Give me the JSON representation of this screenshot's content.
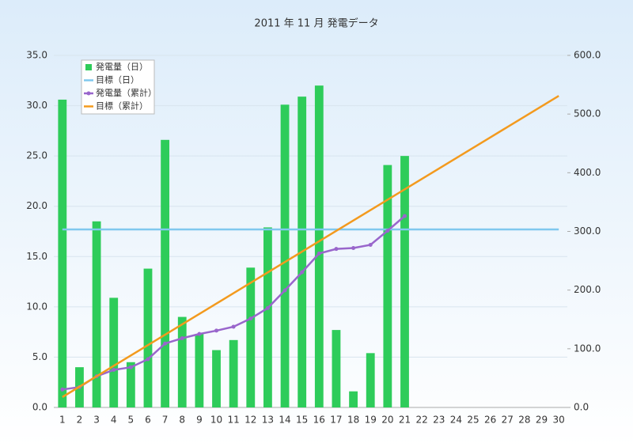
{
  "chart_data": {
    "type": "bar",
    "title": "2011 年 11 月  発電データ",
    "categories": [
      "1",
      "2",
      "3",
      "4",
      "5",
      "6",
      "7",
      "8",
      "9",
      "10",
      "11",
      "12",
      "13",
      "14",
      "15",
      "16",
      "17",
      "18",
      "19",
      "20",
      "21",
      "22",
      "23",
      "24",
      "25",
      "26",
      "27",
      "28",
      "29",
      "30"
    ],
    "series": [
      {
        "name": "発電量（日）",
        "type": "bar",
        "color": "#2ecc5a",
        "values": [
          30.6,
          4.0,
          18.5,
          10.9,
          4.5,
          13.8,
          26.6,
          9.0,
          7.3,
          5.7,
          6.7,
          13.9,
          17.9,
          30.1,
          30.9,
          32.0,
          7.7,
          1.6,
          5.4,
          24.1,
          25.0,
          null,
          null,
          null,
          null,
          null,
          null,
          null,
          null,
          null
        ]
      },
      {
        "name": "目標（日）",
        "type": "line",
        "color": "#80c8ee",
        "values": [
          17.7,
          17.7,
          17.7,
          17.7,
          17.7,
          17.7,
          17.7,
          17.7,
          17.7,
          17.7,
          17.7,
          17.7,
          17.7,
          17.7,
          17.7,
          17.7,
          17.7,
          17.7,
          17.7,
          17.7,
          17.7,
          17.7,
          17.7,
          17.7,
          17.7,
          17.7,
          17.7,
          17.7,
          17.7,
          17.7
        ]
      },
      {
        "name": "発電量（累計）",
        "type": "line",
        "axis": "y2",
        "marker": true,
        "color": "#9966cc",
        "values": [
          30.6,
          34.6,
          53.1,
          64.0,
          68.5,
          82.3,
          108.9,
          117.9,
          125.2,
          130.9,
          137.6,
          151.5,
          169.4,
          199.5,
          230.4,
          262.4,
          270.1,
          271.7,
          277.1,
          301.2,
          326.2,
          null,
          null,
          null,
          null,
          null,
          null,
          null,
          null,
          null
        ]
      },
      {
        "name": "目標（累計）",
        "type": "line",
        "axis": "y2",
        "color": "#f39a1e",
        "values": [
          17.7,
          35.4,
          53.1,
          70.8,
          88.5,
          106.2,
          123.9,
          141.6,
          159.3,
          177.0,
          194.7,
          212.4,
          230.1,
          247.8,
          265.5,
          283.2,
          300.9,
          318.6,
          336.3,
          354.0,
          371.7,
          389.4,
          407.1,
          424.8,
          442.5,
          460.2,
          477.9,
          495.6,
          513.3,
          531.0
        ]
      }
    ],
    "ylim": [
      0,
      35
    ],
    "yticks": [
      {
        "value": 0,
        "label": "0.0"
      },
      {
        "value": 5,
        "label": "5.0"
      },
      {
        "value": 10,
        "label": "10.0"
      },
      {
        "value": 15,
        "label": "15.0"
      },
      {
        "value": 20,
        "label": "20.0"
      },
      {
        "value": 25,
        "label": "25.0"
      },
      {
        "value": 30,
        "label": "30.0"
      },
      {
        "value": 35,
        "label": "35.0"
      }
    ],
    "y2lim": [
      0,
      600
    ],
    "y2ticks": [
      {
        "value": 0,
        "label": "0.0"
      },
      {
        "value": 100,
        "label": "100.0"
      },
      {
        "value": 200,
        "label": "200.0"
      },
      {
        "value": 300,
        "label": "300.0"
      },
      {
        "value": 400,
        "label": "400.0"
      },
      {
        "value": 500,
        "label": "500.0"
      },
      {
        "value": 600,
        "label": "600.0"
      }
    ],
    "grid": true,
    "legend": "top-left"
  }
}
